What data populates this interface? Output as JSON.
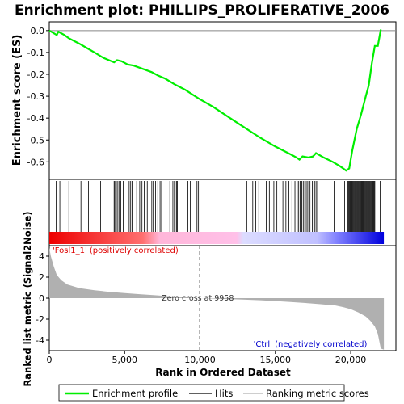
{
  "chart_data": {
    "type": "line",
    "title": "Enrichment plot: PHILLIPS_PROLIFERATIVE_2006",
    "top_panel": {
      "ylabel": "Enrichment score (ES)",
      "ylim": [
        -0.68,
        0.04
      ],
      "yticks": [
        0.0,
        -0.1,
        -0.2,
        -0.3,
        -0.4,
        -0.5,
        -0.6
      ],
      "ytick_labels": [
        "0.0",
        "-0.1",
        "-0.2",
        "-0.3",
        "-0.4",
        "-0.5",
        "-0.6"
      ],
      "series": [
        {
          "name": "Enrichment profile",
          "color": "#00ee00",
          "x": [
            0,
            500,
            600,
            1000,
            1300,
            2000,
            2500,
            3000,
            3600,
            4300,
            4500,
            4800,
            5200,
            5600,
            6200,
            6800,
            7200,
            7700,
            8300,
            9000,
            9900,
            10900,
            12000,
            13000,
            14000,
            15000,
            16000,
            16400,
            16600,
            16800,
            17200,
            17500,
            17700,
            18200,
            18800,
            19300,
            19700,
            19900,
            20100,
            20400,
            20700,
            21000,
            21200,
            21400,
            21600,
            21800,
            22000
          ],
          "y": [
            0.0,
            -0.02,
            -0.005,
            -0.02,
            -0.035,
            -0.06,
            -0.08,
            -0.1,
            -0.125,
            -0.145,
            -0.135,
            -0.14,
            -0.155,
            -0.16,
            -0.175,
            -0.19,
            -0.205,
            -0.22,
            -0.245,
            -0.27,
            -0.31,
            -0.35,
            -0.4,
            -0.445,
            -0.49,
            -0.53,
            -0.565,
            -0.58,
            -0.59,
            -0.575,
            -0.58,
            -0.575,
            -0.56,
            -0.58,
            -0.6,
            -0.62,
            -0.64,
            -0.63,
            -0.55,
            -0.45,
            -0.38,
            -0.3,
            -0.25,
            -0.15,
            -0.07,
            -0.07,
            0.005
          ]
        }
      ],
      "zero_line": 0.0
    },
    "hits_panel": {
      "legend_name": "Hits",
      "hit_ranks": [
        450,
        700,
        1300,
        2100,
        2600,
        3400,
        4300,
        4350,
        4450,
        4550,
        4650,
        4750,
        4900,
        5300,
        5400,
        5500,
        5800,
        6000,
        6150,
        6300,
        6500,
        6800,
        6900,
        7050,
        7200,
        7350,
        7450,
        8000,
        8200,
        8300,
        8350,
        8450,
        8500,
        9200,
        9350,
        9800,
        9900,
        13100,
        13500,
        13700,
        13900,
        14400,
        14600,
        14900,
        15100,
        15300,
        15500,
        15700,
        15900,
        16100,
        16300,
        16450,
        16550,
        16650,
        16750,
        16850,
        16950,
        17050,
        17150,
        17300,
        17450,
        17550,
        17600,
        17700,
        17800,
        18900,
        19600,
        19800,
        19850,
        19900,
        19950,
        20000,
        20050,
        20100,
        20150,
        20200,
        20250,
        20300,
        20350,
        20400,
        20450,
        20500,
        20550,
        20600,
        20650,
        20700,
        20750,
        20800,
        20850,
        20900,
        20950,
        21000,
        21050,
        21100,
        21150,
        21200,
        21250,
        21300,
        21350,
        21400,
        21450,
        21500,
        21550,
        21600,
        21950
      ]
    },
    "bottom_panel": {
      "ylabel": "Ranked list metric (Signal2Noise)",
      "xlabel": "Rank in Ordered Dataset",
      "ylim": [
        -5,
        5
      ],
      "yticks": [
        4,
        2,
        0,
        -2,
        -4
      ],
      "ytick_labels": [
        "4",
        "2",
        "0",
        "-2",
        "-4"
      ],
      "xlim": [
        0,
        23000
      ],
      "xticks": [
        0,
        5000,
        10000,
        15000,
        20000
      ],
      "xtick_labels": [
        "0",
        "5,000",
        "10,000",
        "15,000",
        "20,000"
      ],
      "zero_cross_rank": 9958,
      "zero_cross_label": "Zero cross at 9958",
      "positive_label": "'Fosl1_1' (positively correlated)",
      "negative_label": "'Ctrl' (negatively correlated)",
      "legend_name": "Ranking metric scores",
      "metric_x": [
        0,
        100,
        300,
        500,
        800,
        1200,
        2000,
        3000,
        4000,
        5000,
        6000,
        7000,
        8000,
        9000,
        9958,
        11000,
        12000,
        13000,
        14000,
        15000,
        16000,
        17000,
        18000,
        19000,
        19500,
        20000,
        20500,
        21000,
        21300,
        21600,
        21800,
        22000,
        22200
      ],
      "metric_y": [
        4.8,
        4.0,
        3.0,
        2.2,
        1.7,
        1.3,
        0.95,
        0.75,
        0.6,
        0.48,
        0.38,
        0.28,
        0.18,
        0.09,
        0.0,
        -0.05,
        -0.1,
        -0.15,
        -0.2,
        -0.28,
        -0.36,
        -0.46,
        -0.58,
        -0.7,
        -0.85,
        -1.05,
        -1.35,
        -1.75,
        -2.15,
        -2.7,
        -3.4,
        -4.8,
        -4.9
      ]
    },
    "legend": {
      "placement": "bottom",
      "items": [
        "Enrichment profile",
        "Hits",
        "Ranking metric scores"
      ]
    },
    "colors": {
      "profile": "#00ee00",
      "hits": "#000000",
      "metric_fill": "#b0b0b0",
      "positive_end": "#ee0000",
      "mid_positive": "#ffb6d9",
      "mid_negative": "#c8c8ff",
      "negative_end": "#0000ee",
      "zero_cross": "#a0a0a0",
      "frame": "#000000"
    }
  }
}
